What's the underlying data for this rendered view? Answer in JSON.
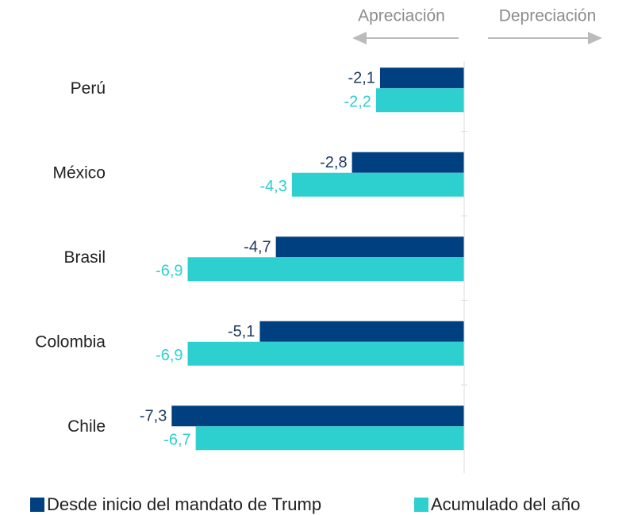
{
  "chart_data": {
    "type": "barh",
    "categories": [
      "Perú",
      "México",
      "Brasil",
      "Colombia",
      "Chile"
    ],
    "series": [
      {
        "name": "Desde inicio del mandato de Trump",
        "color": "#003f80",
        "label_color": "#1f3a60",
        "values": [
          -2.1,
          -2.8,
          -4.7,
          -5.1,
          -7.3
        ],
        "value_labels": [
          "-2,1",
          "-2,8",
          "-4,7",
          "-5,1",
          "-7,3"
        ]
      },
      {
        "name": "Acumulado del año",
        "color": "#2ecfcf",
        "label_color": "#2ecfcf",
        "values": [
          -2.2,
          -4.3,
          -6.9,
          -6.9,
          -6.7
        ],
        "value_labels": [
          "-2,2",
          "-4,3",
          "-6,9",
          "-6,9",
          "-6,7"
        ]
      }
    ],
    "xlim": [
      -8,
      4
    ],
    "annotations": {
      "left": "Apreciación",
      "right": "Depreciación"
    }
  }
}
